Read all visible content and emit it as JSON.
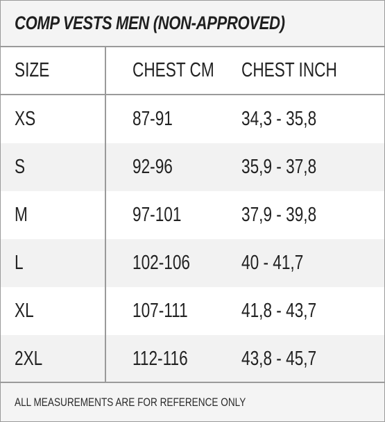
{
  "title": "COMP VESTS MEN (NON-APPROVED)",
  "headers": {
    "size": "SIZE",
    "chest_cm": "CHEST CM",
    "chest_inch": "CHEST INCH"
  },
  "rows": [
    {
      "size": "XS",
      "chest_cm": "87-91",
      "chest_inch": "34,3 - 35,8"
    },
    {
      "size": "S",
      "chest_cm": "92-96",
      "chest_inch": "35,9 - 37,8"
    },
    {
      "size": "M",
      "chest_cm": "97-101",
      "chest_inch": "37,9 - 39,8"
    },
    {
      "size": "L",
      "chest_cm": "102-106",
      "chest_inch": "40 - 41,7"
    },
    {
      "size": "XL",
      "chest_cm": "107-111",
      "chest_inch": "41,8 - 43,7"
    },
    {
      "size": "2XL",
      "chest_cm": "112-116",
      "chest_inch": "43,8 - 45,7"
    }
  ],
  "footer": "ALL MEASUREMENTS ARE FOR REFERENCE ONLY"
}
